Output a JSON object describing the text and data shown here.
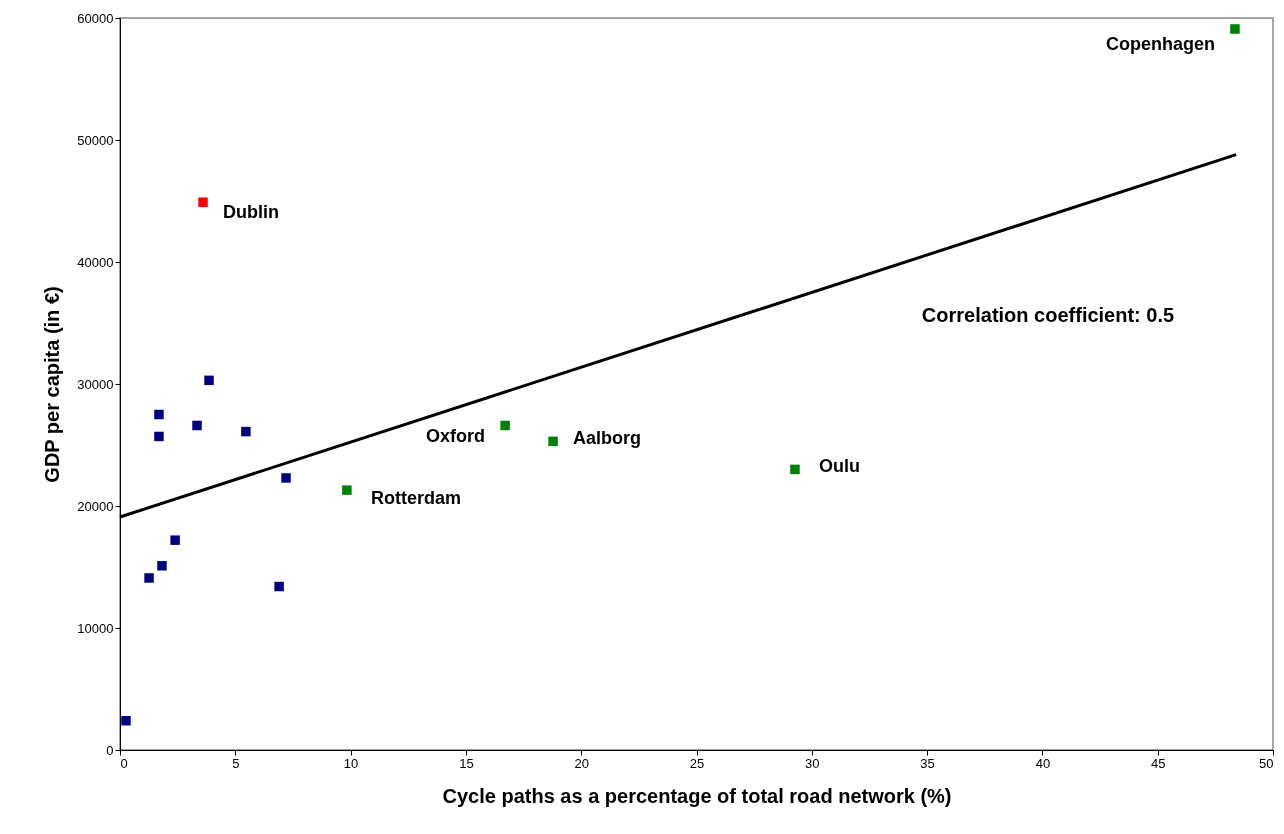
{
  "chart_data": {
    "type": "scatter",
    "xlabel": "Cycle paths as a percentage of total road network (%)",
    "ylabel": "GDP per capita (in €)",
    "xlim": [
      0,
      50
    ],
    "xticks": [
      0,
      5,
      10,
      15,
      20,
      25,
      30,
      35,
      40,
      45,
      50
    ],
    "ylim": [
      0,
      60000
    ],
    "yticks": [
      0,
      10000,
      20000,
      30000,
      40000,
      50000,
      60000
    ],
    "grid": false,
    "marker": "square",
    "series": [
      {
        "color": "#000080",
        "x": [
          0.26,
          1.26,
          1.69,
          1.69,
          1.82,
          2.39,
          3.34,
          3.86,
          5.46,
          6.9,
          7.2
        ],
        "values": [
          2400,
          14100,
          27500,
          25700,
          15100,
          17200,
          26600,
          30300,
          26100,
          13400,
          22300
        ]
      },
      {
        "color": "#ff0000",
        "x": [
          3.6
        ],
        "values": [
          44900
        ]
      },
      {
        "color": "#008000",
        "x": [
          9.84,
          16.7,
          18.78,
          29.27,
          48.35
        ],
        "values": [
          21300,
          26600,
          25300,
          23000,
          59100
        ]
      },
      {
        "type": "line",
        "color": "#000000",
        "marker": "none",
        "x": [
          0,
          48.4
        ],
        "values": [
          19100,
          48800
        ]
      }
    ],
    "annotations": [
      {
        "text": "Dublin",
        "x": 3.6,
        "y": 44900
      },
      {
        "text": "Rotterdam",
        "x": 9.84,
        "y": 21300
      },
      {
        "text": "Oxford",
        "x": 16.7,
        "y": 26600
      },
      {
        "text": "Aalborg",
        "x": 18.78,
        "y": 25300
      },
      {
        "text": "Oulu",
        "x": 29.27,
        "y": 23000
      },
      {
        "text": "Copenhagen",
        "x": 48.35,
        "y": 59100
      },
      "Correlation coefficient: 0.5"
    ]
  }
}
